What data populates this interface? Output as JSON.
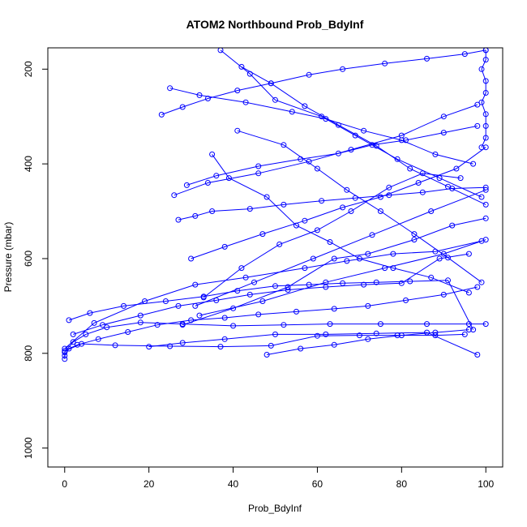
{
  "chart_data": {
    "type": "scatter",
    "title": "ATOM2 Northbound Prob_BdyInf",
    "xlabel": "Prob_BdyInf",
    "ylabel": "Pressure (mbar)",
    "xlim": [
      -4,
      104
    ],
    "ylim": [
      1040,
      155
    ],
    "y_reversed": true,
    "x_ticks": [
      0,
      20,
      40,
      60,
      80,
      100
    ],
    "y_ticks": [
      200,
      400,
      600,
      800,
      1000
    ],
    "grid": false,
    "legend": "none",
    "color": "#0000ff",
    "marker": "open-circle",
    "connected": true,
    "series": [
      {
        "x": [
          0,
          1,
          3,
          8,
          15,
          22,
          30,
          38,
          46,
          55,
          64,
          72,
          81,
          90,
          98
        ],
        "y": [
          805,
          790,
          782,
          770,
          755,
          740,
          730,
          725,
          718,
          712,
          706,
          700,
          688,
          676,
          660
        ]
      },
      {
        "x": [
          0,
          0,
          2,
          5,
          10,
          18,
          28,
          40,
          52,
          63,
          75,
          86,
          96,
          100
        ],
        "y": [
          812,
          798,
          776,
          760,
          745,
          735,
          738,
          742,
          740,
          738,
          738,
          738,
          738,
          738
        ]
      },
      {
        "x": [
          0,
          4,
          12,
          25,
          37,
          49,
          60,
          70,
          79,
          88,
          95
        ],
        "y": [
          795,
          780,
          783,
          785,
          786,
          784,
          763,
          762,
          762,
          762,
          760
        ]
      },
      {
        "x": [
          1,
          6,
          14,
          24,
          33,
          41,
          50,
          58,
          66,
          74,
          82,
          91,
          97
        ],
        "y": [
          730,
          715,
          700,
          690,
          680,
          668,
          658,
          655,
          652,
          650,
          648,
          646,
          750
        ]
      },
      {
        "x": [
          2,
          9,
          18,
          27,
          36,
          44,
          53,
          62,
          71,
          80,
          89,
          96
        ],
        "y": [
          760,
          740,
          720,
          700,
          688,
          676,
          666,
          660,
          655,
          652,
          600,
          590
        ]
      },
      {
        "x": [
          0,
          7,
          19,
          31,
          43,
          57,
          67,
          78,
          88,
          99
        ],
        "y": [
          790,
          736,
          690,
          655,
          640,
          620,
          605,
          590,
          585,
          563
        ]
      },
      {
        "x": [
          27,
          31,
          35,
          44,
          52,
          61,
          69,
          77,
          85,
          92,
          100
        ],
        "y": [
          518,
          510,
          500,
          495,
          486,
          478,
          472,
          466,
          460,
          452,
          450
        ]
      },
      {
        "x": [
          29,
          36,
          46,
          56,
          65,
          73,
          81,
          90,
          98
        ],
        "y": [
          445,
          425,
          405,
          390,
          378,
          360,
          350,
          334,
          320
        ]
      },
      {
        "x": [
          23,
          28,
          34,
          41,
          49,
          58,
          66,
          76,
          86,
          95,
          100
        ],
        "y": [
          296,
          280,
          262,
          245,
          230,
          212,
          200,
          188,
          178,
          168,
          160
        ]
      },
      {
        "x": [
          25,
          32,
          43,
          54,
          62,
          71,
          80,
          88,
          97
        ],
        "y": [
          240,
          255,
          270,
          290,
          305,
          330,
          350,
          380,
          400
        ]
      },
      {
        "x": [
          30,
          38,
          47,
          57,
          66,
          75,
          84,
          93,
          100
        ],
        "y": [
          600,
          575,
          548,
          520,
          492,
          470,
          440,
          410,
          365
        ]
      },
      {
        "x": [
          33,
          42,
          51,
          60,
          68,
          77,
          85,
          94
        ],
        "y": [
          682,
          620,
          570,
          540,
          500,
          450,
          420,
          430
        ]
      },
      {
        "x": [
          28,
          40,
          53,
          64,
          72,
          83,
          92,
          100
        ],
        "y": [
          740,
          705,
          660,
          600,
          590,
          560,
          530,
          515
        ]
      },
      {
        "x": [
          35,
          39,
          48,
          55,
          63,
          70,
          78,
          87,
          96
        ],
        "y": [
          380,
          430,
          470,
          530,
          565,
          600,
          620,
          640,
          672
        ]
      },
      {
        "x": [
          31,
          45,
          59,
          73,
          87,
          100
        ],
        "y": [
          700,
          650,
          600,
          550,
          500,
          455
        ]
      },
      {
        "x": [
          37,
          44,
          50,
          61,
          69,
          79,
          89,
          99
        ],
        "y": [
          160,
          210,
          265,
          300,
          340,
          390,
          430,
          470
        ]
      },
      {
        "x": [
          26,
          34,
          46,
          58,
          68,
          80,
          90,
          98
        ],
        "y": [
          466,
          440,
          420,
          395,
          370,
          340,
          300,
          275
        ]
      },
      {
        "x": [
          32,
          47,
          62,
          76,
          90,
          100
        ],
        "y": [
          720,
          690,
          650,
          620,
          590,
          560
        ]
      },
      {
        "x": [
          48,
          56,
          64,
          72,
          80,
          88,
          96
        ],
        "y": [
          803,
          790,
          782,
          770,
          762,
          756,
          750
        ]
      },
      {
        "x": [
          20,
          28,
          38,
          50,
          62,
          74,
          86,
          98
        ],
        "y": [
          786,
          778,
          770,
          760,
          760,
          758,
          756,
          803
        ]
      },
      {
        "x": [
          41,
          52,
          60,
          67,
          75,
          83,
          91,
          99
        ],
        "y": [
          330,
          360,
          410,
          455,
          500,
          548,
          598,
          650
        ]
      },
      {
        "x": [
          42,
          49,
          57,
          65,
          74,
          82,
          91,
          100
        ],
        "y": [
          195,
          230,
          278,
          318,
          362,
          410,
          448,
          486
        ]
      },
      {
        "x": [
          100,
          100,
          99,
          100,
          100,
          99,
          100,
          100,
          100,
          99
        ],
        "y": [
          160,
          180,
          200,
          225,
          250,
          270,
          295,
          320,
          345,
          365
        ]
      }
    ]
  }
}
